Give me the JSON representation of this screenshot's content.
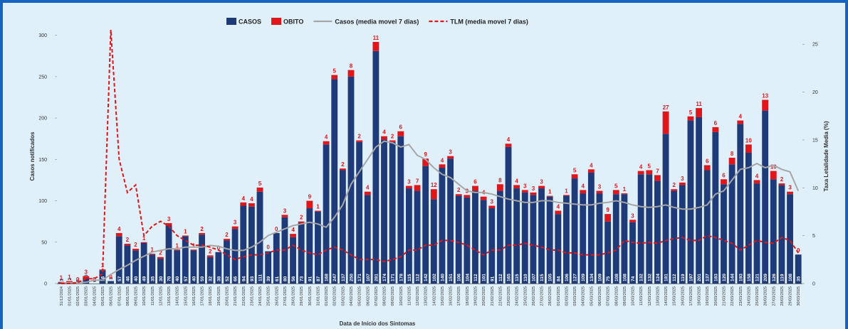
{
  "chart_data": {
    "type": "bar",
    "x_label": "Data de Início dos Sintomas",
    "y_label": "Casos notificados",
    "y2_label": "Taxa Letalidade Media (%)",
    "categories": [
      "31/12/2024",
      "01/01/2025",
      "02/01/2025",
      "03/01/2025",
      "04/01/2025",
      "05/01/2025",
      "06/01/2025",
      "07/01/2025",
      "08/01/2025",
      "09/01/2025",
      "10/01/2025",
      "11/01/2025",
      "12/01/2025",
      "13/01/2025",
      "14/01/2025",
      "15/01/2025",
      "16/01/2025",
      "17/01/2025",
      "18/01/2025",
      "19/01/2025",
      "20/01/2025",
      "21/01/2025",
      "22/01/2025",
      "23/01/2025",
      "24/01/2025",
      "25/01/2025",
      "26/01/2025",
      "27/01/2025",
      "28/01/2025",
      "29/01/2025",
      "30/01/2025",
      "31/01/2025",
      "01/02/2025",
      "02/02/2025",
      "03/02/2025",
      "04/02/2025",
      "05/02/2025",
      "06/02/2025",
      "07/02/2025",
      "08/02/2025",
      "09/02/2025",
      "10/02/2025",
      "11/02/2025",
      "12/02/2025",
      "13/02/2025",
      "14/02/2025",
      "15/02/2025",
      "16/02/2025",
      "17/02/2025",
      "18/02/2025",
      "19/02/2025",
      "20/02/2025",
      "21/02/2025",
      "22/02/2025",
      "23/02/2025",
      "24/02/2025",
      "25/02/2025",
      "26/02/2025",
      "27/02/2025",
      "28/02/2025",
      "01/03/2025",
      "02/03/2025",
      "03/03/2025",
      "04/03/2025",
      "05/03/2025",
      "06/03/2025",
      "07/03/2025",
      "08/03/2025",
      "09/03/2025",
      "10/03/2025",
      "11/03/2025",
      "12/03/2025",
      "13/03/2025",
      "14/03/2025",
      "15/03/2025",
      "16/03/2025",
      "17/03/2025",
      "18/03/2025",
      "19/03/2025",
      "20/03/2025",
      "21/03/2025",
      "22/03/2025",
      "23/03/2025",
      "24/03/2025",
      "25/03/2025",
      "26/03/2025",
      "27/03/2025",
      "28/03/2025",
      "29/03/2025",
      "30/03/2025"
    ],
    "series": [
      {
        "name": "CASOS",
        "color": "#1f3a78",
        "stack": true,
        "values": [
          1,
          2,
          0,
          6,
          0,
          16,
          3,
          57,
          46,
          40,
          49,
          35,
          30,
          70,
          40,
          57,
          40,
          59,
          32,
          38,
          52,
          66,
          94,
          93,
          111,
          39,
          61,
          80,
          56,
          73,
          91,
          87,
          168,
          247,
          137,
          250,
          171,
          107,
          281,
          174,
          171,
          178,
          115,
          112,
          142,
          102,
          140,
          151,
          106,
          104,
          112,
          101,
          91,
          112,
          165,
          115,
          110,
          107,
          115,
          105,
          84,
          106,
          127,
          109,
          134,
          109,
          75,
          108,
          108,
          74,
          132,
          132,
          124,
          181,
          112,
          119,
          197,
          201,
          137,
          183,
          120,
          144,
          193,
          158,
          121,
          209,
          126,
          119,
          108,
          35
        ]
      },
      {
        "name": "OBITO",
        "color": "#e0161b",
        "stack": true,
        "values": [
          1,
          1,
          0,
          3,
          0,
          1,
          0,
          4,
          2,
          2,
          1,
          1,
          2,
          3,
          1,
          1,
          1,
          2,
          2,
          0,
          2,
          3,
          4,
          4,
          5,
          0,
          0,
          3,
          4,
          2,
          9,
          1,
          4,
          5,
          2,
          8,
          2,
          4,
          11,
          4,
          2,
          6,
          3,
          7,
          9,
          12,
          4,
          3,
          2,
          3,
          6,
          4,
          3,
          8,
          4,
          4,
          3,
          3,
          3,
          1,
          4,
          1,
          5,
          4,
          4,
          3,
          9,
          5,
          1,
          3,
          4,
          5,
          7,
          27,
          2,
          3,
          5,
          11,
          6,
          6,
          6,
          8,
          4,
          10,
          4,
          13,
          10,
          2,
          3,
          0
        ]
      },
      {
        "name": "Casos (media movel 7 dias)",
        "color": "#a6a6a6",
        "line": true,
        "values": [
          0.5,
          1,
          1,
          1.5,
          4,
          4,
          11,
          17,
          22,
          28,
          33,
          38,
          40,
          42,
          42,
          44,
          44,
          44,
          46,
          45,
          42,
          40,
          40,
          44,
          50,
          58,
          62,
          66,
          70,
          72,
          74,
          72,
          68,
          80,
          95,
          120,
          135,
          150,
          165,
          172,
          170,
          165,
          168,
          155,
          150,
          140,
          132,
          128,
          120,
          112,
          110,
          110,
          108,
          105,
          102,
          100,
          98,
          98,
          100,
          100,
          98,
          97,
          96,
          95,
          95,
          97,
          98,
          100,
          98,
          95,
          93,
          92,
          93,
          95,
          92,
          90,
          90,
          92,
          95,
          108,
          112,
          125,
          138,
          140,
          145,
          140,
          143,
          138,
          135,
          112
        ]
      },
      {
        "name": "TLM (media movel 7 dias)",
        "color": "#e0161b",
        "line": true,
        "dashed": true,
        "axis": "y2",
        "values": [
          0,
          0,
          0.1,
          0.5,
          0.5,
          1,
          26.5,
          13,
          9.5,
          10.3,
          5,
          6,
          6.5,
          6,
          5,
          4.5,
          4,
          4,
          3.8,
          3.5,
          3,
          2.5,
          2.8,
          3,
          3,
          3.2,
          3.5,
          3.5,
          4,
          3.5,
          3.2,
          3,
          3.5,
          3.8,
          3.5,
          3,
          2.5,
          2.5,
          2.5,
          2.3,
          2.5,
          2.8,
          3.5,
          3.5,
          4,
          4,
          4.5,
          4.5,
          4.3,
          4,
          3.5,
          3,
          3.5,
          3.5,
          4,
          4,
          4.2,
          4,
          3.8,
          3.5,
          3.5,
          3.2,
          3.2,
          3,
          3,
          3,
          3.2,
          3.5,
          4.5,
          4.3,
          4.2,
          4.3,
          4.2,
          4.5,
          4.7,
          4.8,
          4.5,
          4.5,
          5,
          4.8,
          4.5,
          4.2,
          3.5,
          4,
          4.5,
          4.3,
          4.2,
          4.8,
          4.5,
          3.2
        ]
      }
    ],
    "ylim": [
      0,
      310
    ],
    "yticks": [
      0,
      50,
      100,
      150,
      200,
      250,
      300
    ],
    "y2lim": [
      0,
      26.8
    ],
    "y2ticks": [
      0,
      5,
      10,
      15,
      20,
      25
    ],
    "grid": false,
    "legend": "top"
  }
}
